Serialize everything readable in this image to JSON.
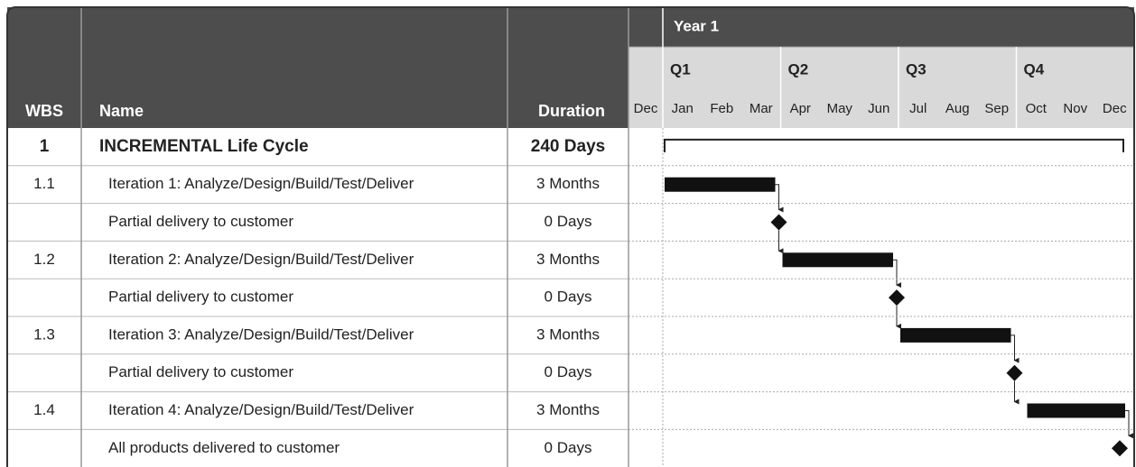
{
  "header": {
    "wbs": "WBS",
    "name": "Name",
    "duration": "Duration",
    "year": "Year 1",
    "quarters": [
      "Q1",
      "Q2",
      "Q3",
      "Q4"
    ],
    "months": [
      "Dec",
      "Jan",
      "Feb",
      "Mar",
      "Apr",
      "May",
      "Jun",
      "Jul",
      "Aug",
      "Sep",
      "Oct",
      "Nov",
      "Dec"
    ]
  },
  "table": {
    "rows": [
      [
        "1",
        "INCREMENTAL Life Cycle",
        "240 Days"
      ],
      [
        "1.1",
        "Iteration 1: Analyze/Design/Build/Test/Deliver",
        "3 Months"
      ],
      [
        "",
        "Partial delivery to customer",
        "0 Days"
      ],
      [
        "1.2",
        "Iteration 2: Analyze/Design/Build/Test/Deliver",
        "3 Months"
      ],
      [
        "",
        "Partial delivery to customer",
        "0 Days"
      ],
      [
        "1.3",
        "Iteration 3: Analyze/Design/Build/Test/Deliver",
        "3 Months"
      ],
      [
        "",
        "Partial delivery to customer",
        "0 Days"
      ],
      [
        "1.4",
        "Iteration 4: Analyze/Design/Build/Test/Deliver",
        "3 Months"
      ],
      [
        "",
        "All products delivered to customer",
        "0 Days"
      ]
    ]
  }
}
